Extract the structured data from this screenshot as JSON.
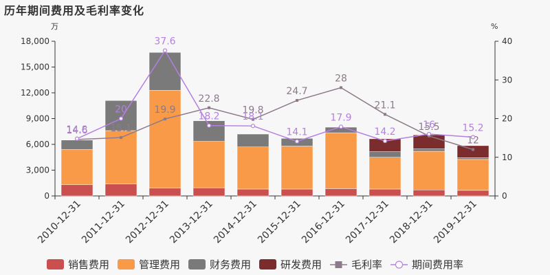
{
  "title": "历年期间费用及毛利率变化",
  "chart_data": {
    "type": "bar",
    "stacked": true,
    "categories": [
      "2010-12-31",
      "2011-12-31",
      "2012-12-31",
      "2013-12-31",
      "2014-12-31",
      "2015-12-31",
      "2016-12-31",
      "2017-12-31",
      "2018-12-31",
      "2019-12-31"
    ],
    "y_left": {
      "unit": "万",
      "lim": [
        0,
        18000
      ],
      "ticks": [
        "0",
        "3,000",
        "6,000",
        "9,000",
        "12,000",
        "15,000",
        "18,000"
      ],
      "tick_values": [
        0,
        3000,
        6000,
        9000,
        12000,
        15000,
        18000
      ]
    },
    "y_right": {
      "unit": "%",
      "lim": [
        0,
        40
      ],
      "ticks": [
        "0",
        "10",
        "20",
        "30",
        "40"
      ],
      "tick_values": [
        0,
        10,
        20,
        30,
        40
      ]
    },
    "series": [
      {
        "name": "销售费用",
        "type": "bar",
        "color": "#c9504f",
        "values": [
          1300,
          1400,
          900,
          950,
          800,
          800,
          850,
          800,
          700,
          650
        ]
      },
      {
        "name": "管理费用",
        "type": "bar",
        "color": "#f89a47",
        "values": [
          4100,
          6200,
          11400,
          5400,
          4900,
          5000,
          6500,
          3700,
          4500,
          3600
        ]
      },
      {
        "name": "财务费用",
        "type": "bar",
        "color": "#7a7a7a",
        "values": [
          1100,
          3500,
          4400,
          2400,
          1500,
          900,
          650,
          650,
          300,
          200
        ]
      },
      {
        "name": "研发费用",
        "type": "bar",
        "color": "#7b2c2c",
        "values": [
          0,
          0,
          0,
          0,
          0,
          0,
          0,
          1500,
          1600,
          1400
        ]
      },
      {
        "name": "毛利率",
        "type": "line",
        "axis": "right",
        "color": "#8c7a8a",
        "marker": "square",
        "values": [
          14.6,
          15.1,
          19.9,
          22.8,
          19.8,
          24.7,
          28,
          21.1,
          15.5,
          12
        ],
        "labels": [
          "14.6",
          "15.1",
          "19.9",
          "22.8",
          "19.8",
          "24.7",
          "28",
          "21.1",
          "15.5",
          "12"
        ]
      },
      {
        "name": "期间费用率",
        "type": "line",
        "axis": "right",
        "color": "#b57fe0",
        "marker": "circle",
        "values": [
          14.8,
          20,
          37.6,
          18.2,
          18.1,
          14.1,
          17.9,
          14.2,
          16,
          15.2
        ],
        "labels": [
          "14.8",
          "20",
          "37.6",
          "18.2",
          "18.1",
          "14.1",
          "17.9",
          "14.2",
          "16",
          "15.2"
        ]
      }
    ],
    "legend_position": "bottom",
    "grid": false
  }
}
